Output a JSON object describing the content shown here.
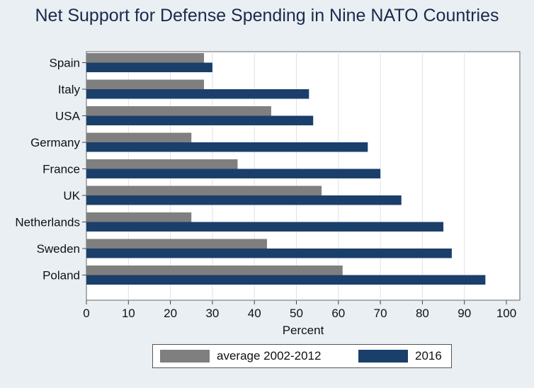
{
  "chart_data": {
    "type": "bar",
    "orientation": "horizontal",
    "title": "Net Support for Defense Spending in Nine NATO Countries",
    "xlabel": "Percent",
    "ylabel": "",
    "xlim": [
      0,
      100
    ],
    "xticks": [
      0,
      10,
      20,
      30,
      40,
      50,
      60,
      70,
      80,
      90,
      100
    ],
    "grid": "vertical",
    "legend": "bottom",
    "categories": [
      "Spain",
      "Italy",
      "USA",
      "Germany",
      "France",
      "UK",
      "Netherlands",
      "Sweden",
      "Poland"
    ],
    "series": [
      {
        "name": "average 2002-2012",
        "color": "#7f7f7f",
        "values": [
          28,
          28,
          44,
          25,
          36,
          56,
          25,
          43,
          61
        ]
      },
      {
        "name": "2016",
        "color": "#1b3f6b",
        "values": [
          30,
          53,
          54,
          67,
          70,
          75,
          85,
          87,
          95
        ]
      }
    ]
  }
}
